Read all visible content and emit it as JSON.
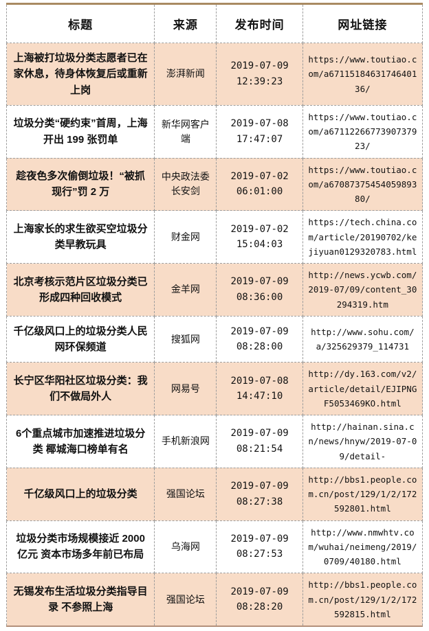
{
  "colors": {
    "row_highlight": "#f8dcc7",
    "row_plain": "#ffffff",
    "top_border": "#a98a62",
    "bottom_border": "#b3907a",
    "cell_border": "#9b9b9b",
    "text": "#111111"
  },
  "table": {
    "headers": [
      "标题",
      "来源",
      "发布时间",
      "网址链接"
    ],
    "rows": [
      {
        "title": "上海被打垃圾分类志愿者已在家休息，待身体恢复后或重新上岗",
        "source": "澎湃新闻",
        "time": "2019-07-09 12:39:23",
        "url": "https://www.toutiao.com/a6711518463174640136/"
      },
      {
        "title": "垃圾分类“硬约束”首周，上海开出 199 张罚单",
        "source": "新华网客户端",
        "time": "2019-07-08 17:47:07",
        "url": "https://www.toutiao.com/a6711226677390737923/"
      },
      {
        "title": "趁夜色多次偷倒垃圾！“被抓现行”罚 2 万",
        "source": "中央政法委长安剑",
        "time": "2019-07-02 06:01:00",
        "url": "https://www.toutiao.com/a6708737545405989380/"
      },
      {
        "title": "上海家长的求生欲买空垃圾分类早教玩具",
        "source": "财金网",
        "time": "2019-07-02 15:04:03",
        "url": "https://tech.china.com/article/20190702/kejiyuan0129320783.html"
      },
      {
        "title": "北京考核示范片区垃圾分类已形成四种回收模式",
        "source": "金羊网",
        "time": "2019-07-09 08:36:00",
        "url": "http://news.ycwb.com/2019-07/09/content_30294319.htm"
      },
      {
        "title": "千亿级风口上的垃圾分类人民网环保频道",
        "source": "搜狐网",
        "time": "2019-07-09 08:28:00",
        "url": "http://www.sohu.com/a/325629379_114731"
      },
      {
        "title": "长宁区华阳社区垃圾分类：我们不做局外人",
        "source": "网易号",
        "time": "2019-07-08 14:47:10",
        "url": "http://dy.163.com/v2/article/detail/EJIPNGF5053469KO.html"
      },
      {
        "title": "6个重点城市加速推进垃圾分类 椰城海口榜单有名",
        "source": "手机新浪网",
        "time": "2019-07-09 08:21:54",
        "url": "http://hainan.sina.cn/news/hnyw/2019-07-09/detail-"
      },
      {
        "title": "千亿级风口上的垃圾分类",
        "source": "强国论坛",
        "time": "2019-07-09 08:27:38",
        "url": "http://bbs1.people.com.cn/post/129/1/2/172592801.html"
      },
      {
        "title": "垃圾分类市场规模接近 2000 亿元 资本市场多年前已布局",
        "source": "乌海网",
        "time": "2019-07-09 08:27:53",
        "url": "http://www.nmwhtv.com/wuhai/neimeng/2019/0709/40180.html"
      },
      {
        "title": "无锡发布生活垃圾分类指导目录 不参照上海",
        "source": "强国论坛",
        "time": "2019-07-09 08:28:20",
        "url": "http://bbs1.people.com.cn/post/129/1/2/172592815.html"
      }
    ]
  }
}
